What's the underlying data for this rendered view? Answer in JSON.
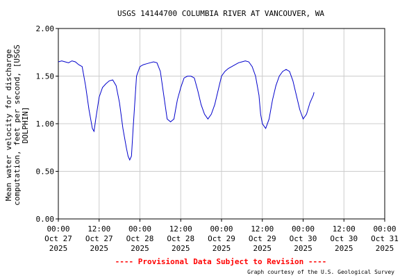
{
  "chart_data": {
    "type": "line",
    "title": "USGS 14144700 COLUMBIA RIVER AT VANCOUVER, WA",
    "ylabel_lines": [
      "Mean water velocity for discharge",
      "computation, feet per second, [USGS",
      "DOLPHIN]"
    ],
    "xlabel": "",
    "ylim": [
      0,
      2.0
    ],
    "xlim_hours": [
      0,
      96
    ],
    "grid": true,
    "y_ticks": [
      "0.00",
      "0.50",
      "1.00",
      "1.50",
      "2.00"
    ],
    "y_tick_values": [
      0,
      0.5,
      1.0,
      1.5,
      2.0
    ],
    "x_ticks": [
      {
        "time": "00:00",
        "date": "Oct 27",
        "year": "2025"
      },
      {
        "time": "12:00",
        "date": "Oct 27",
        "year": "2025"
      },
      {
        "time": "00:00",
        "date": "Oct 28",
        "year": "2025"
      },
      {
        "time": "12:00",
        "date": "Oct 28",
        "year": "2025"
      },
      {
        "time": "00:00",
        "date": "Oct 29",
        "year": "2025"
      },
      {
        "time": "12:00",
        "date": "Oct 29",
        "year": "2025"
      },
      {
        "time": "00:00",
        "date": "Oct 30",
        "year": "2025"
      },
      {
        "time": "12:00",
        "date": "Oct 30",
        "year": "2025"
      },
      {
        "time": "00:00",
        "date": "Oct 31",
        "year": "2025"
      }
    ],
    "series": [
      {
        "color": "#0000cc",
        "x_hours": [
          0,
          1,
          2,
          3,
          4,
          5,
          6,
          7,
          8,
          9,
          10,
          10.5,
          11,
          12,
          13,
          14,
          15,
          16,
          17,
          18,
          19,
          20,
          20.5,
          21,
          21.5,
          22,
          23,
          24,
          25,
          26,
          27,
          28,
          29,
          30,
          31,
          32,
          33,
          34,
          34.5,
          35,
          36,
          37,
          38,
          39,
          40,
          41,
          42,
          43,
          44,
          45,
          46,
          47,
          48,
          49,
          50,
          51,
          52,
          53,
          54,
          55,
          56,
          57,
          58,
          59,
          59.5,
          60,
          61,
          62,
          63,
          64,
          65,
          66,
          67,
          68,
          69,
          70,
          71,
          72,
          73,
          74,
          75,
          75.2
        ],
        "values": [
          1.65,
          1.66,
          1.65,
          1.64,
          1.66,
          1.65,
          1.62,
          1.6,
          1.4,
          1.15,
          0.95,
          0.92,
          1.05,
          1.28,
          1.38,
          1.42,
          1.45,
          1.46,
          1.4,
          1.22,
          0.95,
          0.75,
          0.66,
          0.62,
          0.66,
          0.95,
          1.5,
          1.6,
          1.62,
          1.63,
          1.64,
          1.65,
          1.64,
          1.55,
          1.3,
          1.05,
          1.02,
          1.05,
          1.15,
          1.25,
          1.38,
          1.48,
          1.5,
          1.5,
          1.48,
          1.35,
          1.2,
          1.1,
          1.05,
          1.1,
          1.2,
          1.35,
          1.5,
          1.55,
          1.58,
          1.6,
          1.62,
          1.64,
          1.65,
          1.66,
          1.65,
          1.6,
          1.5,
          1.3,
          1.1,
          1.0,
          0.95,
          1.05,
          1.25,
          1.4,
          1.5,
          1.55,
          1.57,
          1.55,
          1.45,
          1.3,
          1.15,
          1.05,
          1.1,
          1.22,
          1.3,
          1.33
        ]
      }
    ]
  },
  "provisional_text": "---- Provisional Data Subject to Revision ----",
  "courtesy_text": "Graph courtesy of the U.S. Geological Survey",
  "colors": {
    "line": "#0000cc",
    "provisional": "#ff0000",
    "grid": "#cccccc"
  }
}
